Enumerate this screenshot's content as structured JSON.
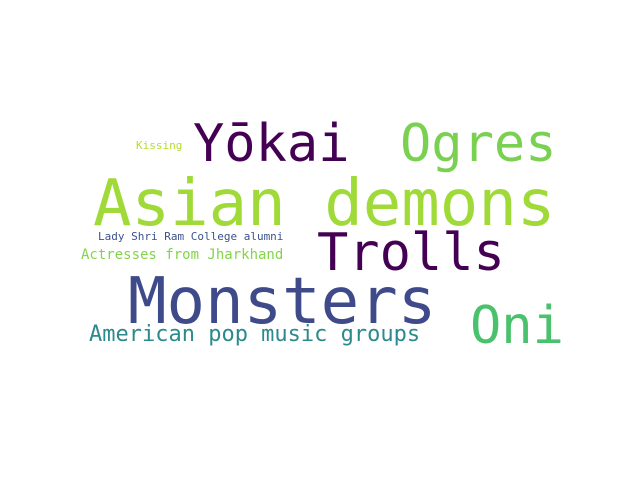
{
  "cloud": {
    "words": {
      "yokai": {
        "text": "Yōkai",
        "color": "#440154"
      },
      "ogres": {
        "text": "Ogres",
        "color": "#7ad151"
      },
      "kissing": {
        "text": "Kissing",
        "color": "#b5de2b"
      },
      "asian": {
        "text": "Asian demons",
        "color": "#a0da39"
      },
      "lady": {
        "text": "Lady Shri Ram College alumni",
        "color": "#3b528b"
      },
      "trolls": {
        "text": "Trolls",
        "color": "#440154"
      },
      "actress": {
        "text": "Actresses from Jharkhand",
        "color": "#84d44b"
      },
      "monsters": {
        "text": "Monsters",
        "color": "#3e4a89"
      },
      "oni": {
        "text": "Oni",
        "color": "#4ac16d"
      },
      "pop": {
        "text": "American pop music groups",
        "color": "#2c8a8c"
      }
    }
  }
}
